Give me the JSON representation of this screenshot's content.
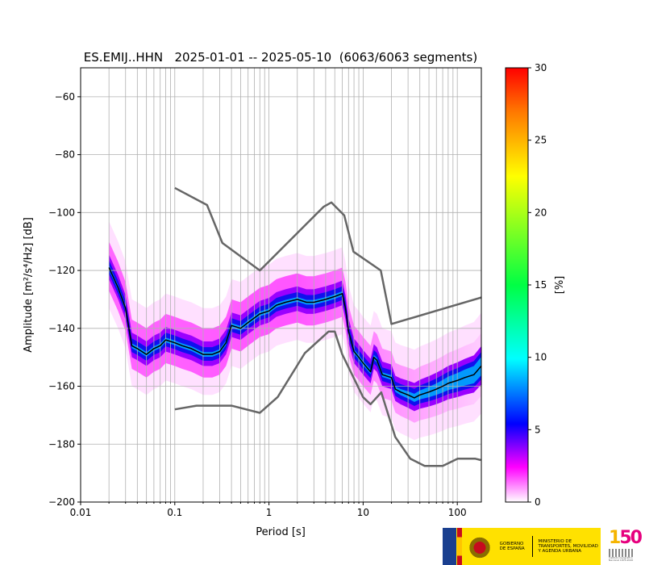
{
  "chart_data": {
    "type": "heatmap",
    "title": "ES.EMIJ..HHN   2025-01-01 -- 2025-05-10  (6063/6063 segments)",
    "xlabel": "Period [s]",
    "ylabel": "Amplitude [m²/s⁴/Hz] [dB]",
    "xscale": "log",
    "xlim": [
      0.01,
      180
    ],
    "ylim": [
      -200,
      -50
    ],
    "xticks": [
      0.01,
      0.1,
      1,
      10,
      100
    ],
    "xtick_labels": [
      "0.01",
      "0.1",
      "1",
      "10",
      "100"
    ],
    "yticks": [
      -200,
      -180,
      -160,
      -140,
      -120,
      -100,
      -80,
      -60
    ],
    "ytick_labels": [
      "−200",
      "−180",
      "−160",
      "−140",
      "−120",
      "−100",
      "−80",
      "−60"
    ],
    "grid": true,
    "colorbar": {
      "label": "[%]",
      "range": [
        0,
        30
      ],
      "ticks": [
        0,
        5,
        10,
        15,
        20,
        25,
        30
      ],
      "tick_labels": [
        "0",
        "5",
        "10",
        "15",
        "20",
        "25",
        "30"
      ]
    },
    "series": [
      {
        "role": "mode",
        "color": "#000000",
        "x": [
          0.02,
          0.025,
          0.03,
          0.035,
          0.04,
          0.05,
          0.06,
          0.07,
          0.08,
          0.1,
          0.12,
          0.15,
          0.2,
          0.25,
          0.3,
          0.35,
          0.4,
          0.5,
          0.6,
          0.8,
          1,
          1.2,
          1.5,
          2,
          2.5,
          3,
          4,
          5,
          6,
          6.5,
          7,
          8,
          9,
          10,
          12,
          13,
          14,
          16,
          20,
          22,
          25,
          30,
          35,
          40,
          50,
          60,
          70,
          80,
          100,
          120,
          150,
          180
        ],
        "y": [
          -119,
          -126,
          -133,
          -146,
          -147,
          -149,
          -147,
          -146,
          -144,
          -145,
          -146,
          -147,
          -149,
          -149,
          -148,
          -145,
          -139,
          -140,
          -138,
          -135,
          -134,
          -132,
          -131,
          -130,
          -131,
          -131,
          -130,
          -129,
          -128,
          -133,
          -141,
          -148,
          -150,
          -152,
          -155,
          -150,
          -151,
          -156,
          -157,
          -161,
          -162,
          -163,
          -164,
          -163,
          -162,
          -161,
          -160,
          -159,
          -158,
          -157,
          -156,
          -153
        ]
      },
      {
        "role": "high-noise-model",
        "color": "#666666",
        "x": [
          0.1,
          0.22,
          0.32,
          0.8,
          3.8,
          4.6,
          6.3,
          7.9,
          15.4,
          20,
          354.8
        ],
        "y": [
          -91.5,
          -97.4,
          -110.5,
          -120,
          -98,
          -96.5,
          -101,
          -113.5,
          -120,
          -138.5,
          -126.5
        ]
      },
      {
        "role": "low-noise-model",
        "color": "#666666",
        "x": [
          0.1,
          0.17,
          0.4,
          0.8,
          1.24,
          2.4,
          4.3,
          5,
          6,
          10,
          12,
          15.6,
          21.9,
          31.6,
          45,
          70,
          101,
          154,
          178
        ],
        "y": [
          -168,
          -166.7,
          -166.7,
          -169.2,
          -163.7,
          -148.6,
          -141.1,
          -141.1,
          -149,
          -163.8,
          -166.2,
          -162.1,
          -177.5,
          -185,
          -187.5,
          -187.5,
          -185,
          -185,
          -185.5
        ]
      }
    ]
  },
  "logos": {
    "gobierno": "GOBIERNO DE ESPAÑA",
    "ministerio": "MINISTERIO DE TRANSPORTES, MOVILIDAD Y AGENDA URBANA",
    "ign_a": "1",
    "ign_b": "50",
    "ign_text": "Instituto Geográfico Nacional 1870-2020"
  }
}
